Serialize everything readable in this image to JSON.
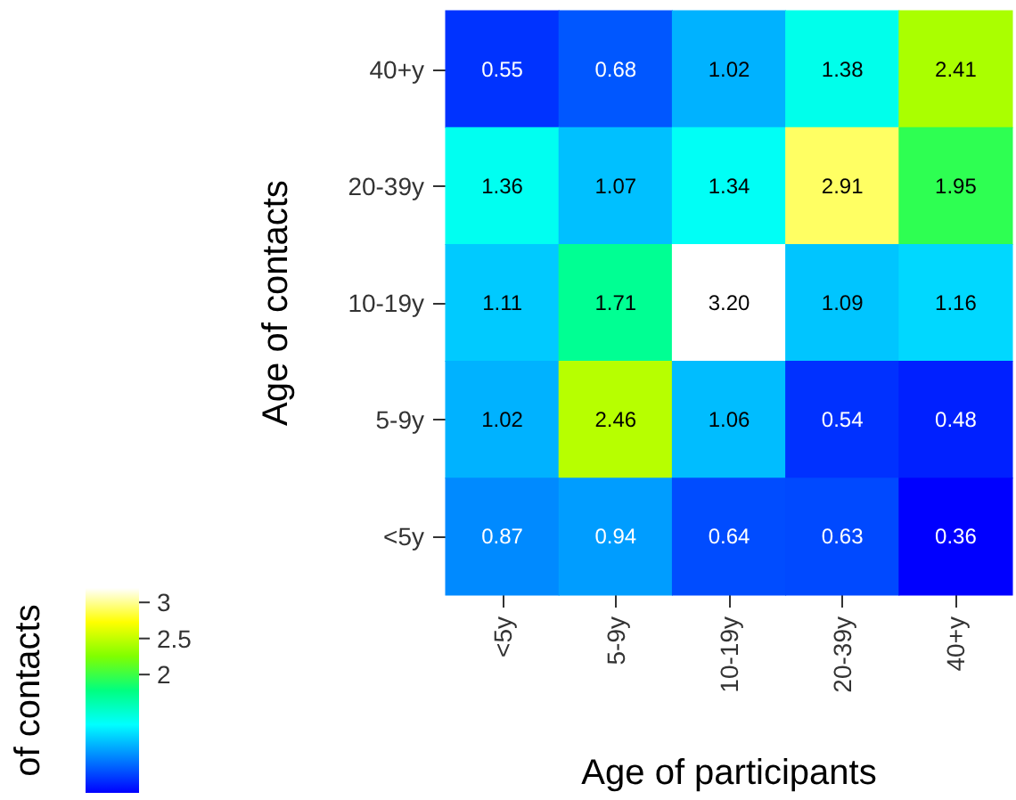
{
  "chart_data": {
    "type": "heatmap",
    "xlabel": "Age of participants",
    "ylabel": "Age of contacts",
    "clabel": "of contacts",
    "categories": [
      "<5y",
      "5-9y",
      "10-19y",
      "20-39y",
      "40+y"
    ],
    "y_categories": [
      "40+y",
      "20-39y",
      "10-19y",
      "5-9y",
      "<5y"
    ],
    "cells": [
      [
        0.55,
        0.68,
        1.02,
        1.38,
        2.41
      ],
      [
        1.36,
        1.07,
        1.34,
        2.91,
        1.95
      ],
      [
        1.11,
        1.71,
        3.2,
        1.09,
        1.16
      ],
      [
        1.02,
        2.46,
        1.06,
        0.54,
        0.48
      ],
      [
        0.87,
        0.94,
        0.64,
        0.63,
        0.36
      ]
    ],
    "cell_labels": [
      [
        "0.55",
        "0.68",
        "1.02",
        "1.38",
        "2.41"
      ],
      [
        "1.36",
        "1.07",
        "1.34",
        "2.91",
        "1.95"
      ],
      [
        "1.11",
        "1.71",
        "3.20",
        "1.09",
        "1.16"
      ],
      [
        "1.02",
        "2.46",
        "1.06",
        "0.54",
        "0.48"
      ],
      [
        "0.87",
        "0.94",
        "0.64",
        "0.63",
        "0.36"
      ]
    ],
    "clim": [
      0.36,
      3.2
    ],
    "cticks": [
      2,
      2.5,
      3
    ],
    "data_labels": true
  }
}
